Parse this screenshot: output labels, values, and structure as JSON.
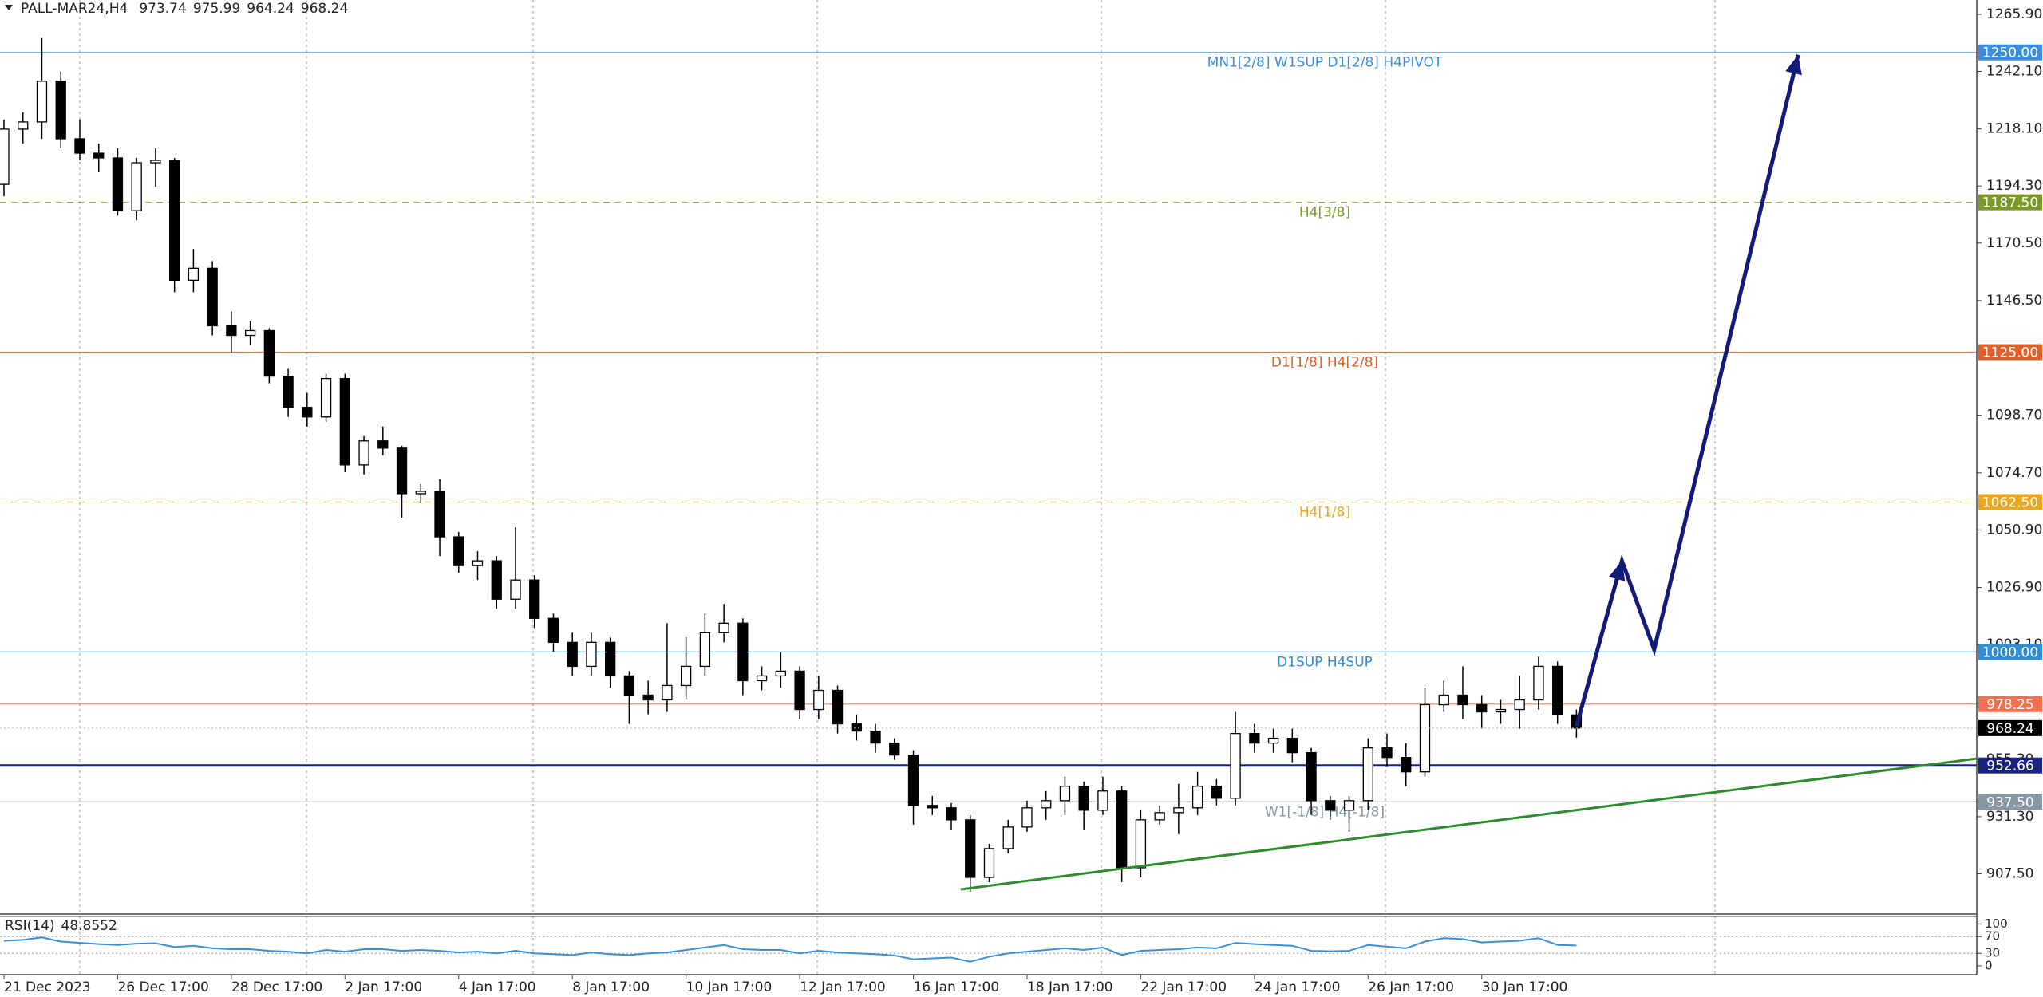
{
  "chart_data": {
    "type": "candlestick",
    "symbol": "PALL-MAR24,H4",
    "ylim": [
      890.7,
      1271.86
    ],
    "yticks": [
      {
        "value": 1265.9,
        "label": "1265.90"
      },
      {
        "value": 1242.1,
        "label": "1242.10"
      },
      {
        "value": 1218.1,
        "label": "1218.10"
      },
      {
        "value": 1194.3,
        "label": "1194.30"
      },
      {
        "value": 1170.5,
        "label": "1170.50"
      },
      {
        "value": 1146.5,
        "label": "1146.50"
      },
      {
        "value": 1098.7,
        "label": "1098.70"
      },
      {
        "value": 1074.7,
        "label": "1074.70"
      },
      {
        "value": 1050.9,
        "label": "1050.90"
      },
      {
        "value": 1026.9,
        "label": "1026.90"
      },
      {
        "value": 1003.1,
        "label": "1003.10"
      },
      {
        "value": 955.3,
        "label": "955.30"
      },
      {
        "value": 931.3,
        "label": "931.30"
      },
      {
        "value": 907.5,
        "label": "907.50"
      }
    ],
    "xticks": [
      {
        "value": 0,
        "label": "21 Dec 2023"
      },
      {
        "value": 6,
        "label": "26 Dec 17:00"
      },
      {
        "value": 12,
        "label": "28 Dec 17:00"
      },
      {
        "value": 18,
        "label": "2 Jan 17:00"
      },
      {
        "value": 24,
        "label": "4 Jan 17:00"
      },
      {
        "value": 30,
        "label": "8 Jan 17:00"
      },
      {
        "value": 36,
        "label": "10 Jan 17:00"
      },
      {
        "value": 42,
        "label": "12 Jan 17:00"
      },
      {
        "value": 48,
        "label": "16 Jan 17:00"
      },
      {
        "value": 54,
        "label": "18 Jan 17:00"
      },
      {
        "value": 60,
        "label": "22 Jan 17:00"
      },
      {
        "value": 66,
        "label": "24 Jan 17:00"
      },
      {
        "value": 72,
        "label": "26 Jan 17:00"
      },
      {
        "value": 78,
        "label": "30 Jan 17:00"
      }
    ],
    "candles": [
      [
        1195,
        1222,
        1190,
        1218
      ],
      [
        1218,
        1225,
        1212,
        1221
      ],
      [
        1221,
        1256,
        1214,
        1238
      ],
      [
        1238,
        1242,
        1210,
        1214
      ],
      [
        1214,
        1222,
        1205,
        1208
      ],
      [
        1208,
        1212,
        1200,
        1206
      ],
      [
        1206,
        1210,
        1182,
        1184
      ],
      [
        1184,
        1206,
        1180,
        1204
      ],
      [
        1204,
        1210,
        1194,
        1205
      ],
      [
        1205,
        1206,
        1150,
        1155
      ],
      [
        1155,
        1168,
        1150,
        1160
      ],
      [
        1160,
        1163,
        1132,
        1136
      ],
      [
        1136,
        1142,
        1125,
        1132
      ],
      [
        1132,
        1138,
        1128,
        1134
      ],
      [
        1134,
        1135,
        1112,
        1115
      ],
      [
        1115,
        1118,
        1098,
        1102
      ],
      [
        1102,
        1108,
        1094,
        1098
      ],
      [
        1098,
        1116,
        1096,
        1114
      ],
      [
        1114,
        1116,
        1075,
        1078
      ],
      [
        1078,
        1090,
        1074,
        1088
      ],
      [
        1088,
        1094,
        1082,
        1085
      ],
      [
        1085,
        1086,
        1056,
        1066
      ],
      [
        1066,
        1070,
        1062,
        1067
      ],
      [
        1067,
        1072,
        1040,
        1048
      ],
      [
        1048,
        1050,
        1033,
        1036
      ],
      [
        1036,
        1042,
        1030,
        1038
      ],
      [
        1038,
        1040,
        1018,
        1022
      ],
      [
        1022,
        1052,
        1018,
        1030
      ],
      [
        1030,
        1032,
        1010,
        1014
      ],
      [
        1014,
        1016,
        1000,
        1004
      ],
      [
        1004,
        1008,
        990,
        994
      ],
      [
        994,
        1008,
        990,
        1004
      ],
      [
        1004,
        1006,
        985,
        990
      ],
      [
        990,
        992,
        970,
        982
      ],
      [
        982,
        988,
        974,
        980
      ],
      [
        980,
        1012,
        975,
        986
      ],
      [
        986,
        1006,
        980,
        994
      ],
      [
        994,
        1016,
        990,
        1008
      ],
      [
        1008,
        1020,
        1004,
        1012
      ],
      [
        1012,
        1014,
        982,
        988
      ],
      [
        988,
        994,
        984,
        990
      ],
      [
        990,
        1000,
        985,
        992
      ],
      [
        992,
        994,
        972,
        976
      ],
      [
        976,
        990,
        972,
        984
      ],
      [
        984,
        986,
        966,
        970
      ],
      [
        970,
        974,
        963,
        967
      ],
      [
        967,
        970,
        958,
        962
      ],
      [
        962,
        964,
        955,
        957
      ],
      [
        957,
        959,
        928,
        936
      ],
      [
        936,
        940,
        932,
        935
      ],
      [
        935,
        937,
        926,
        930
      ],
      [
        930,
        932,
        900,
        906
      ],
      [
        906,
        920,
        904,
        918
      ],
      [
        918,
        930,
        916,
        927
      ],
      [
        927,
        938,
        925,
        935
      ],
      [
        935,
        942,
        930,
        938
      ],
      [
        938,
        948,
        932,
        944
      ],
      [
        944,
        946,
        926,
        934
      ],
      [
        934,
        948,
        932,
        942
      ],
      [
        942,
        944,
        904,
        910
      ],
      [
        910,
        934,
        906,
        930
      ],
      [
        930,
        936,
        928,
        933
      ],
      [
        933,
        945,
        924,
        935
      ],
      [
        935,
        950,
        932,
        944
      ],
      [
        944,
        947,
        936,
        939
      ],
      [
        939,
        975,
        936,
        966
      ],
      [
        966,
        970,
        958,
        962
      ],
      [
        962,
        968,
        958,
        964
      ],
      [
        964,
        968,
        954,
        958
      ],
      [
        958,
        960,
        932,
        938
      ],
      [
        938,
        940,
        930,
        934
      ],
      [
        934,
        940,
        925,
        938
      ],
      [
        938,
        964,
        934,
        960
      ],
      [
        960,
        966,
        952,
        956
      ],
      [
        956,
        962,
        944,
        950
      ],
      [
        950,
        985,
        948,
        978
      ],
      [
        978,
        988,
        975,
        982
      ],
      [
        982,
        994,
        972,
        978
      ],
      [
        978,
        982,
        968,
        975
      ],
      [
        975,
        980,
        970,
        976
      ],
      [
        976,
        990,
        968,
        980
      ],
      [
        980,
        998,
        976,
        994
      ],
      [
        994,
        996,
        970,
        974
      ],
      [
        973.74,
        975.99,
        964.24,
        968.24
      ]
    ],
    "levels": [
      {
        "value": 1250,
        "label": "1250.00",
        "text": "MN1[2/8] W1SUP D1[2/8] H4PIVOT",
        "color": "#3b8ede",
        "style": "solid"
      },
      {
        "value": 1187.5,
        "label": "1187.50",
        "text": "H4[3/8]",
        "color": "#7a9a2a",
        "style": "dashed"
      },
      {
        "value": 1125,
        "label": "1125.00",
        "text": "D1[1/8] H4[2/8]",
        "color": "#e0602a",
        "style": "solid"
      },
      {
        "value": 1062.5,
        "label": "1062.50",
        "text": "H4[1/8]",
        "color": "#eaa820",
        "style": "dashed"
      },
      {
        "value": 1000,
        "label": "1000.00",
        "text": "D1SUP H4SUP",
        "color": "#2e8ed8",
        "style": "solid"
      },
      {
        "value": 978.25,
        "color": "#f07050",
        "style": "solid"
      },
      {
        "value": 952.66,
        "color": "#1a237e",
        "style": "thick"
      },
      {
        "value": 937.5,
        "label": "937.50",
        "text": "W1[-1/8] H4[-1/8]",
        "color": "#8a98a6",
        "style": "solid"
      }
    ],
    "trendline": {
      "x": [
        50.5,
        104.1
      ],
      "y": [
        901,
        955.5
      ],
      "color": "#2e8b2e"
    },
    "projection": {
      "x": [
        83,
        85.4,
        87.1,
        94.7
      ],
      "y": [
        969,
        1038,
        1001,
        1249
      ],
      "color": "#141a78"
    },
    "rsi": {
      "name": "RSI(14)",
      "color": "#3a8fd9",
      "ylim": [
        -21,
        118
      ],
      "yticks": [
        100,
        70,
        30,
        0
      ],
      "values": [
        60,
        62,
        68,
        58,
        55,
        52,
        50,
        53,
        54,
        45,
        48,
        42,
        40,
        40,
        36,
        34,
        30,
        38,
        34,
        40,
        40,
        36,
        38,
        36,
        32,
        34,
        30,
        36,
        30,
        28,
        26,
        32,
        28,
        26,
        30,
        32,
        38,
        44,
        50,
        40,
        38,
        38,
        30,
        36,
        32,
        30,
        28,
        25,
        16,
        18,
        20,
        10,
        22,
        30,
        34,
        38,
        42,
        38,
        44,
        26,
        36,
        38,
        40,
        44,
        42,
        55,
        52,
        50,
        48,
        36,
        35,
        36,
        50,
        46,
        42,
        58,
        66,
        64,
        56,
        58,
        60,
        66,
        50,
        48.8552
      ]
    }
  }
}
